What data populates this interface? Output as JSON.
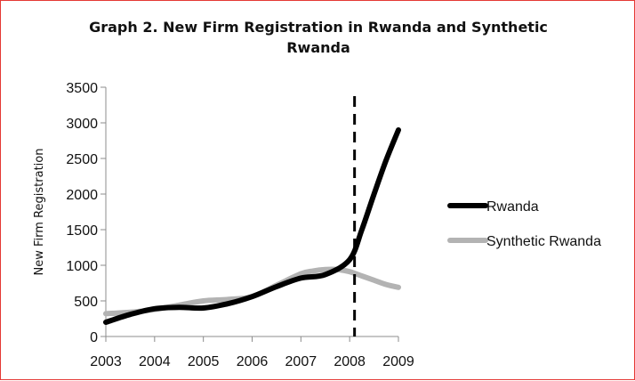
{
  "chart_data": {
    "type": "line",
    "title_line1": "Graph 2. New Firm Registration in Rwanda and Synthetic",
    "title_line2": "Rwanda",
    "xlabel": "",
    "ylabel": "New Firm Registration",
    "xlim": [
      2003,
      2009
    ],
    "ylim": [
      0,
      3500
    ],
    "xticks": [
      "2003",
      "2004",
      "2005",
      "2006",
      "2007",
      "2008",
      "2009"
    ],
    "yticks": [
      "0",
      "500",
      "1000",
      "1500",
      "2000",
      "2500",
      "3000",
      "3500"
    ],
    "grid": false,
    "legend_position": "right",
    "vertical_line": {
      "x": 2008.1,
      "style": "dashed"
    },
    "series": [
      {
        "name": "Rwanda",
        "color": "#000000",
        "x": [
          2003,
          2003.5,
          2004,
          2004.5,
          2005,
          2005.5,
          2006,
          2006.5,
          2007,
          2007.5,
          2008,
          2008.25,
          2008.5,
          2008.75,
          2009
        ],
        "values": [
          200,
          310,
          390,
          410,
          400,
          460,
          560,
          700,
          820,
          870,
          1080,
          1500,
          2000,
          2480,
          2900
        ]
      },
      {
        "name": "Synthetic Rwanda",
        "color": "#b3b3b3",
        "x": [
          2003,
          2003.5,
          2004,
          2004.5,
          2005,
          2005.5,
          2006,
          2006.5,
          2007,
          2007.25,
          2007.5,
          2007.75,
          2008,
          2008.25,
          2008.5,
          2008.75,
          2009
        ],
        "values": [
          320,
          340,
          380,
          440,
          500,
          520,
          560,
          720,
          880,
          920,
          940,
          940,
          910,
          850,
          790,
          730,
          690
        ]
      }
    ]
  }
}
